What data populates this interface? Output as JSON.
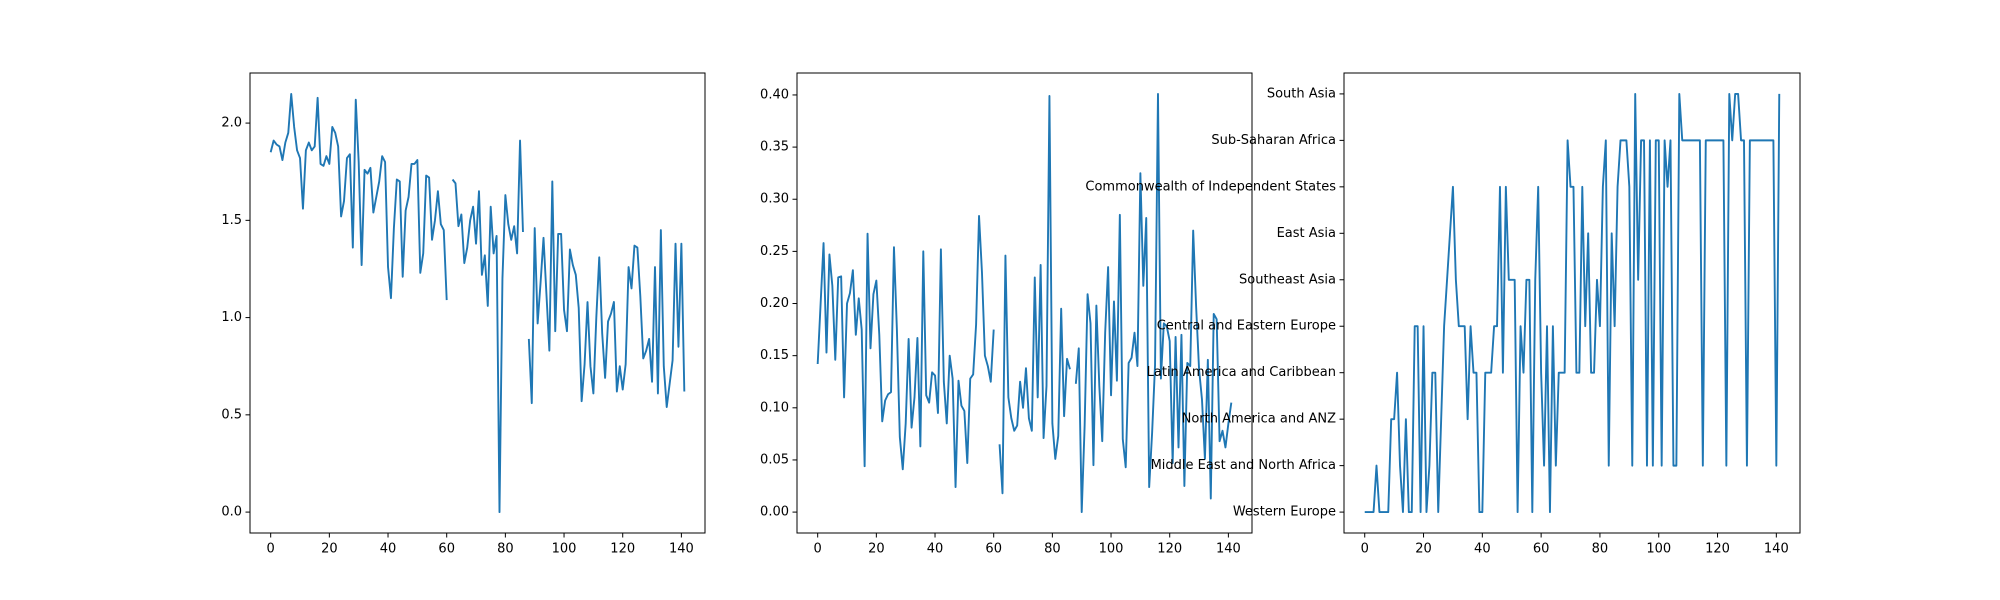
{
  "chart_data": [
    {
      "type": "line",
      "color": "#1f77b4",
      "xlim": [
        -7.05,
        148.05
      ],
      "xticks": [
        0,
        20,
        40,
        60,
        80,
        100,
        120,
        140
      ],
      "ylim": [
        -0.1075,
        2.2575
      ],
      "yticks": [
        {
          "value": 0,
          "label": "0.0"
        },
        {
          "value": 0.5,
          "label": "0.5"
        },
        {
          "value": 1,
          "label": "1.0"
        },
        {
          "value": 1.5,
          "label": "1.5"
        },
        {
          "value": 2,
          "label": "2.0"
        }
      ],
      "values": [
        1.85,
        1.91,
        1.89,
        1.88,
        1.81,
        1.9,
        1.95,
        2.15,
        1.98,
        1.86,
        1.82,
        1.56,
        1.86,
        1.9,
        1.86,
        1.88,
        2.13,
        1.79,
        1.78,
        1.83,
        1.79,
        1.98,
        1.95,
        1.88,
        1.52,
        1.6,
        1.82,
        1.84,
        1.36,
        2.12,
        1.8,
        1.27,
        1.76,
        1.74,
        1.77,
        1.54,
        1.62,
        1.7,
        1.83,
        1.8,
        1.26,
        1.1,
        1.46,
        1.71,
        1.7,
        1.21,
        1.55,
        1.62,
        1.79,
        1.79,
        1.81,
        1.23,
        1.33,
        1.73,
        1.72,
        1.4,
        1.5,
        1.65,
        1.48,
        1.45,
        1.09,
        null,
        1.71,
        1.69,
        1.47,
        1.53,
        1.28,
        1.36,
        1.5,
        1.57,
        1.38,
        1.65,
        1.22,
        1.32,
        1.06,
        1.57,
        1.33,
        1.42,
        0.0,
        1.2,
        1.63,
        1.48,
        1.4,
        1.47,
        1.33,
        1.91,
        1.44,
        null,
        0.89,
        0.56,
        1.46,
        0.97,
        1.18,
        1.41,
        1.12,
        0.83,
        1.7,
        0.93,
        1.43,
        1.43,
        1.04,
        0.93,
        1.35,
        1.27,
        1.22,
        1.05,
        0.57,
        0.76,
        1.08,
        0.75,
        0.61,
        1.0,
        1.31,
        0.92,
        0.69,
        0.98,
        1.02,
        1.08,
        0.62,
        0.75,
        0.63,
        0.76,
        1.26,
        1.15,
        1.37,
        1.36,
        1.11,
        0.79,
        0.83,
        0.89,
        0.67,
        1.26,
        0.61,
        1.45,
        0.75,
        0.54,
        0.66,
        0.78,
        1.38,
        0.85,
        1.38,
        0.62
      ]
    },
    {
      "type": "line",
      "color": "#1f77b4",
      "xlim": [
        -7.05,
        148.05
      ],
      "xticks": [
        0,
        20,
        40,
        60,
        80,
        100,
        120,
        140
      ],
      "ylim": [
        -0.02005,
        0.42105
      ],
      "yticks": [
        {
          "value": 0,
          "label": "0.00"
        },
        {
          "value": 0.05,
          "label": "0.05"
        },
        {
          "value": 0.1,
          "label": "0.10"
        },
        {
          "value": 0.15,
          "label": "0.15"
        },
        {
          "value": 0.2,
          "label": "0.20"
        },
        {
          "value": 0.25,
          "label": "0.25"
        },
        {
          "value": 0.3,
          "label": "0.30"
        },
        {
          "value": 0.35,
          "label": "0.35"
        },
        {
          "value": 0.4,
          "label": "0.40"
        }
      ],
      "values": [
        0.142,
        0.2,
        0.258,
        0.153,
        0.247,
        0.217,
        0.146,
        0.225,
        0.226,
        0.11,
        0.2,
        0.21,
        0.232,
        0.17,
        0.205,
        0.175,
        0.044,
        0.267,
        0.157,
        0.209,
        0.222,
        0.17,
        0.087,
        0.107,
        0.113,
        0.115,
        0.254,
        0.175,
        0.072,
        0.041,
        0.085,
        0.166,
        0.081,
        0.11,
        0.167,
        0.063,
        0.25,
        0.112,
        0.105,
        0.134,
        0.131,
        0.095,
        0.252,
        0.125,
        0.085,
        0.15,
        0.128,
        0.024,
        0.126,
        0.102,
        0.097,
        0.047,
        0.128,
        0.132,
        0.18,
        0.284,
        0.23,
        0.15,
        0.14,
        0.125,
        0.175,
        null,
        0.065,
        0.018,
        0.246,
        0.11,
        0.09,
        0.078,
        0.083,
        0.125,
        0.1,
        0.138,
        0.09,
        0.078,
        0.225,
        0.11,
        0.237,
        0.071,
        0.121,
        0.399,
        0.085,
        0.051,
        0.073,
        0.195,
        0.092,
        0.147,
        0.137,
        null,
        0.123,
        0.157,
        0.0,
        0.083,
        0.209,
        0.181,
        0.045,
        0.198,
        0.121,
        0.068,
        0.172,
        0.235,
        0.112,
        0.202,
        0.126,
        0.285,
        0.07,
        0.043,
        0.143,
        0.148,
        0.172,
        0.14,
        0.325,
        0.217,
        0.282,
        0.024,
        0.076,
        0.141,
        0.401,
        0.128,
        0.181,
        0.178,
        0.164,
        0.047,
        0.168,
        0.062,
        0.17,
        0.025,
        0.143,
        0.14,
        0.27,
        0.197,
        0.137,
        0.108,
        0.051,
        0.146,
        0.013,
        0.19,
        0.185,
        0.068,
        0.078,
        0.062,
        0.085,
        0.105
      ]
    },
    {
      "type": "line",
      "color": "#1f77b4",
      "xlim": [
        -7.05,
        148.05
      ],
      "xticks": [
        0,
        20,
        40,
        60,
        80,
        100,
        120,
        140
      ],
      "ylim": [
        -0.45,
        9.45
      ],
      "yticks": [
        {
          "value": 0,
          "label": "Western Europe"
        },
        {
          "value": 1,
          "label": "Middle East and North Africa"
        },
        {
          "value": 2,
          "label": "North America and ANZ"
        },
        {
          "value": 3,
          "label": "Latin America and Caribbean"
        },
        {
          "value": 4,
          "label": "Central and Eastern Europe"
        },
        {
          "value": 5,
          "label": "Southeast Asia"
        },
        {
          "value": 6,
          "label": "East Asia"
        },
        {
          "value": 7,
          "label": "Commonwealth of Independent States"
        },
        {
          "value": 8,
          "label": "Sub-Saharan Africa"
        },
        {
          "value": 9,
          "label": "South Asia"
        }
      ],
      "values": [
        0,
        0,
        0,
        0,
        1,
        0,
        0,
        0,
        0,
        2,
        2,
        3,
        1,
        0,
        2,
        0,
        0,
        4,
        4,
        0,
        4,
        0,
        1,
        3,
        3,
        0,
        2,
        4,
        5,
        6,
        7,
        5,
        4,
        4,
        4,
        2,
        4,
        3,
        3,
        0,
        0,
        3,
        3,
        3,
        4,
        4,
        7,
        3,
        7,
        5,
        5,
        5,
        0,
        4,
        3,
        5,
        5,
        0,
        5,
        7,
        3,
        1,
        4,
        0,
        4,
        1,
        3,
        3,
        3,
        8,
        7,
        7,
        3,
        3,
        7,
        4,
        6,
        3,
        3,
        5,
        4,
        7,
        8,
        1,
        6,
        4,
        7,
        8,
        8,
        8,
        7,
        1,
        9,
        5,
        8,
        8,
        1,
        8,
        1,
        8,
        8,
        1,
        8,
        7,
        8,
        1,
        1,
        9,
        8,
        8,
        8,
        8,
        8,
        8,
        8,
        1,
        8,
        8,
        8,
        8,
        8,
        8,
        8,
        1,
        9,
        8,
        9,
        9,
        8,
        8,
        1,
        8,
        8,
        8,
        8,
        8,
        8,
        8,
        8,
        8,
        1,
        9
      ]
    }
  ]
}
